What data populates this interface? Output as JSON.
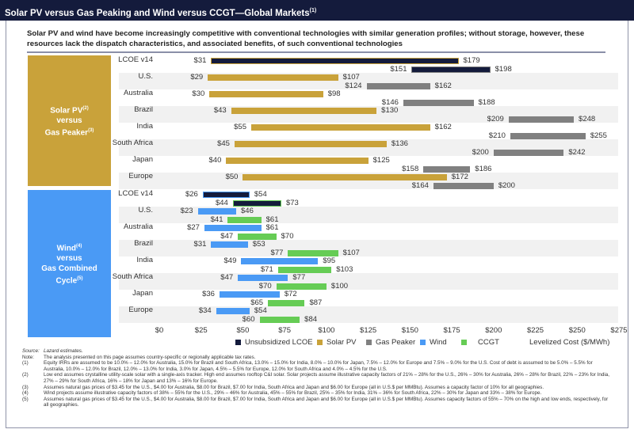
{
  "header": {
    "title": "Solar PV versus Gas Peaking and Wind versus CCGT—Global Markets",
    "title_note": "(1)"
  },
  "subtitle": "Solar PV and wind have become increasingly competitive with conventional technologies with similar generation profiles; without storage, however, these resources lack the dispatch characteristics, and associated benefits, of such conventional technologies",
  "panels": [
    {
      "line1": "Solar PV",
      "note1": "(2)",
      "line2": "versus",
      "line3": "Gas Peaker",
      "note3": "(3)",
      "color": "#c9a23a"
    },
    {
      "line1": "Wind",
      "note1": "(4)",
      "line2": "versus",
      "line3": "Gas Combined Cycle",
      "note3": "(5)",
      "color": "#4a9af5"
    }
  ],
  "chart_data": {
    "type": "bar",
    "subtype": "floating-range horizontal bar",
    "xlabel": "Levelized Cost ($/MWh)",
    "xlim": [
      0,
      275
    ],
    "xticks": [
      "$0",
      "$25",
      "$50",
      "$75",
      "$100",
      "$125",
      "$150",
      "$175",
      "$200",
      "$225",
      "$250",
      "$275"
    ],
    "colors": {
      "Unsubsidized LCOE": "#141b3c",
      "Solar PV": "#c9a23a",
      "Gas Peaker": "#808080",
      "Wind": "#4a9af5",
      "CCGT": "#66cc55"
    },
    "legend": [
      "Unsubsidized LCOE",
      "Solar PV",
      "Gas Peaker",
      "Wind",
      "CCGT"
    ],
    "groups": [
      {
        "name": "Solar PV versus Gas Peaker",
        "rows": [
          {
            "category": "LCOE v14",
            "a": [
              31,
              179
            ],
            "b": [
              151,
              198
            ],
            "lcoe": true
          },
          {
            "category": "U.S.",
            "a": [
              29,
              107
            ],
            "b": [
              124,
              162
            ]
          },
          {
            "category": "Australia",
            "a": [
              30,
              98
            ],
            "b": [
              146,
              188
            ]
          },
          {
            "category": "Brazil",
            "a": [
              43,
              130
            ],
            "b": [
              209,
              248
            ]
          },
          {
            "category": "India",
            "a": [
              55,
              162
            ],
            "b": [
              210,
              255
            ]
          },
          {
            "category": "South Africa",
            "a": [
              45,
              136
            ],
            "b": [
              200,
              242
            ]
          },
          {
            "category": "Japan",
            "a": [
              40,
              125
            ],
            "b": [
              158,
              186
            ]
          },
          {
            "category": "Europe",
            "a": [
              50,
              172
            ],
            "b": [
              164,
              200
            ]
          }
        ],
        "a_series": "Solar PV",
        "b_series": "Gas Peaker"
      },
      {
        "name": "Wind versus Gas Combined Cycle",
        "rows": [
          {
            "category": "LCOE v14",
            "a": [
              26,
              54
            ],
            "b": [
              44,
              73
            ],
            "lcoe": true
          },
          {
            "category": "U.S.",
            "a": [
              23,
              46
            ],
            "b": [
              41,
              61
            ]
          },
          {
            "category": "Australia",
            "a": [
              27,
              61
            ],
            "b": [
              47,
              70
            ]
          },
          {
            "category": "Brazil",
            "a": [
              31,
              53
            ],
            "b": [
              77,
              107
            ]
          },
          {
            "category": "India",
            "a": [
              49,
              95
            ],
            "b": [
              71,
              103
            ]
          },
          {
            "category": "South Africa",
            "a": [
              47,
              77
            ],
            "b": [
              70,
              100
            ]
          },
          {
            "category": "Japan",
            "a": [
              36,
              72
            ],
            "b": [
              65,
              87
            ]
          },
          {
            "category": "Europe",
            "a": [
              34,
              54
            ],
            "b": [
              60,
              84
            ]
          }
        ],
        "a_series": "Wind",
        "b_series": "CCGT"
      }
    ]
  },
  "notes": [
    {
      "k": "Source:",
      "t": "Lazard estimates."
    },
    {
      "k": "Note:",
      "t": "The analysis presented on this page assumes country-specific or regionally applicable tax rates."
    },
    {
      "k": "(1)",
      "t": "Equity IRRs are assumed to be 10.0% – 12.0% for Australia, 15.0% for Brazil and South Africa, 13.0% – 15.0% for India, 8.0% – 10.0% for Japan, 7.5% – 12.0% for Europe  and 7.5% – 9.0% for the U.S. Cost of debt is assumed to be 5.0% – 5.5% for Australia, 10.0% – 12.0% for Brazil, 12.0% – 13.0% for India, 3.0% for Japan, 4.5% – 5.5% for Europe, 12.0% for South Africa and 4.0% – 4.5% for the U.S."
    },
    {
      "k": "(2)",
      "t": "Low end assumes crystalline utility-scale solar with a single-axis tracker. High end assumes rooftop C&I solar. Solar projects assume illustrative capacity factors of 21% – 28% for the U.S., 26% – 30% for Australia, 26% – 28% for Brazil, 22% – 23% for India, 27% – 29% for South Africa, 16% – 18% for Japan and 13% – 16% for Europe."
    },
    {
      "k": "(3)",
      "t": "Assumes natural gas prices of $3.45 for the U.S., $4.00 for Australia, $8.00 for Brazil, $7.00 for India, South Africa and Japan and $6.00 for Europe (all in U.S.$ per MMBtu). Assumes a capacity factor of 10% for all geographies."
    },
    {
      "k": "(4)",
      "t": "Wind projects assume illustrative capacity factors of 38% – 55% for the U.S., 29% – 46% for Australia, 45% – 55% for Brazil, 25% – 35% for India, 31% – 36% for South Africa, 22% – 30% for Japan and 33% – 38% for Europe."
    },
    {
      "k": "(5)",
      "t": "Assumes natural gas prices of $3.45 for the U.S., $4.00 for Australia, $8.00 for Brazil, $7.00 for India, South Africa and Japan and $6.00 for Europe (all in U.S.$ per MMBtu). Assumes capacity factors of 55% – 70% on the high and low ends, respectively, for all geographies."
    }
  ]
}
